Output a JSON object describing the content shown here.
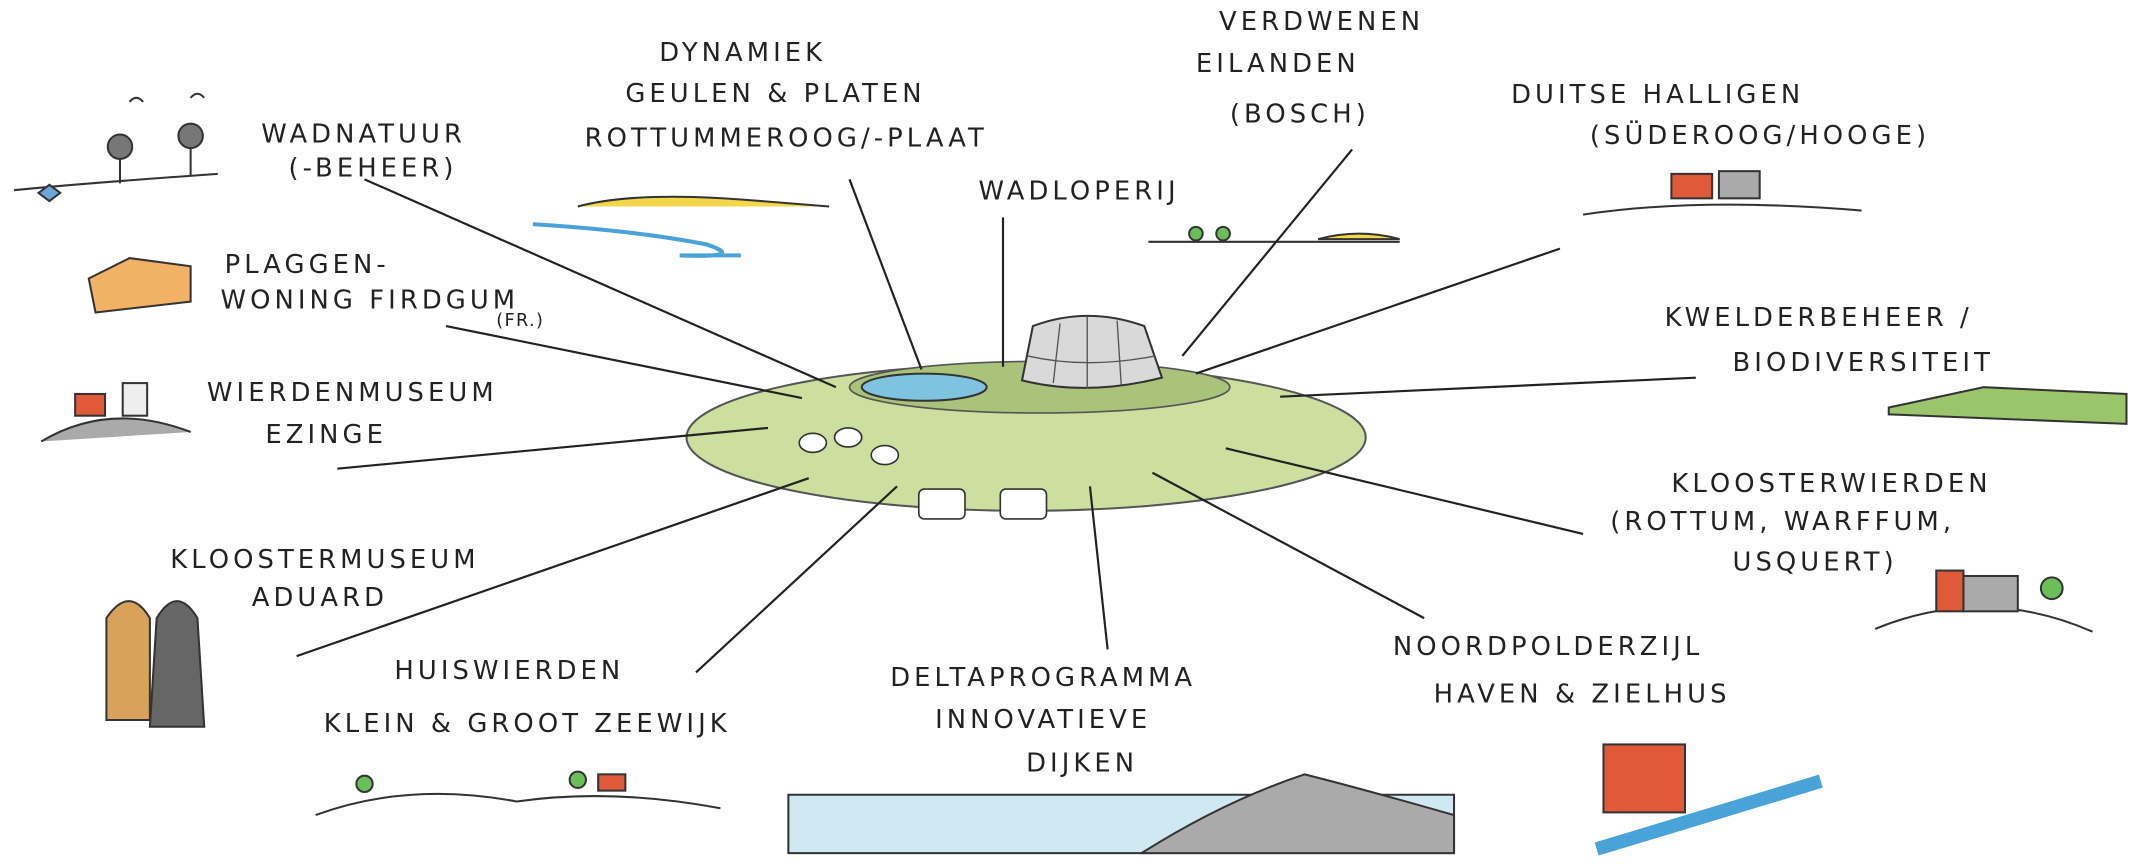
{
  "labels": [
    {
      "lines": [
        "WADNATUUR",
        "(-BEHEER)"
      ]
    },
    {
      "lines": [
        "DYNAMIEK",
        "GEULEN & PLATEN",
        "ROTTUMMEROOG/-PLAAT"
      ]
    },
    {
      "lines": [
        "WADLOPERIJ"
      ]
    },
    {
      "lines": [
        "VERDWENEN",
        "EILANDEN",
        "(BOSCH)"
      ]
    },
    {
      "lines": [
        "DUITSE HALLIGEN",
        "(SÜDEROOG/HOOGE)"
      ]
    },
    {
      "lines": [
        "KWELDERBEHEER /",
        "BIODIVERSITEIT"
      ]
    },
    {
      "lines": [
        "KLOOSTERWIERDEN",
        "(ROTTUM, WARFFUM,",
        "USQUERT)"
      ]
    },
    {
      "lines": [
        "NOORDPOLDERZIJL",
        "HAVEN & ZIELHUS"
      ]
    },
    {
      "lines": [
        "DELTAPROGRAMMA",
        "INNOVATIEVE",
        "DIJKEN"
      ]
    },
    {
      "lines": [
        "HUISWIERDEN",
        "KLEIN & GROOT ZEEWIJK"
      ]
    },
    {
      "lines": [
        "KLOOSTERMUSEUM",
        "ADUARD"
      ]
    },
    {
      "lines": [
        "WIERDENMUSEUM",
        "EZINGE"
      ]
    },
    {
      "lines": [
        "PLAGGEN-",
        "WONING FIRDGUM",
        "(FR.)"
      ]
    }
  ]
}
